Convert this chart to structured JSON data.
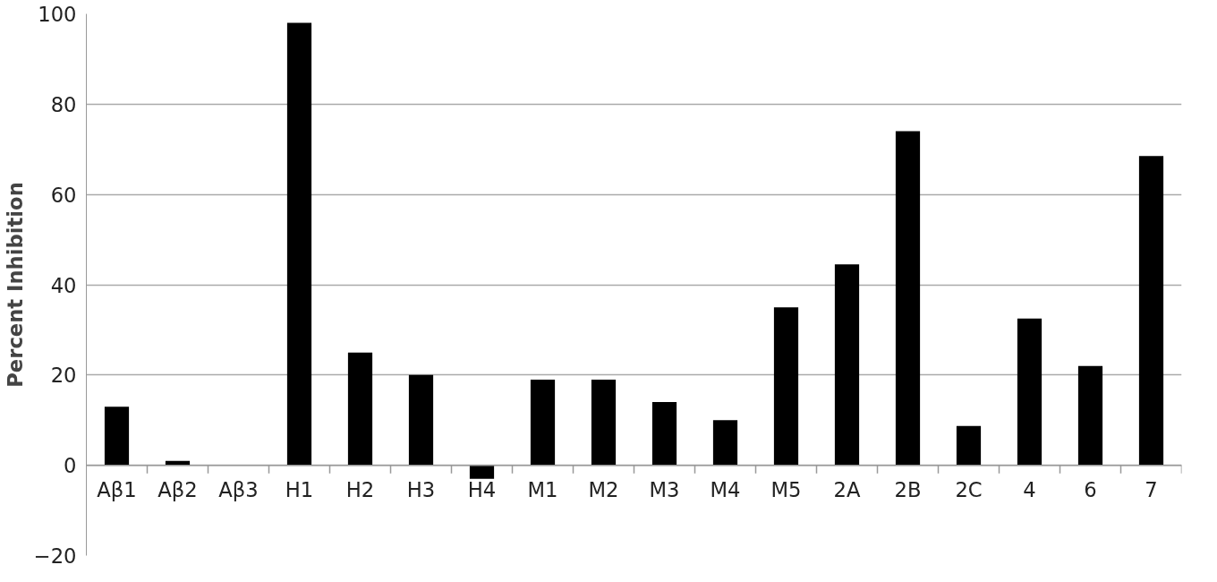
{
  "chart_data": {
    "type": "bar",
    "ylabel": "Percent Inhibition",
    "categories": [
      "Aβ1",
      "Aβ2",
      "Aβ3",
      "H1",
      "H2",
      "H3",
      "H4",
      "M1",
      "M2",
      "M3",
      "M4",
      "M5",
      "2A",
      "2B",
      "2C",
      "4",
      "6",
      "7"
    ],
    "values": [
      13,
      1,
      0,
      98,
      25,
      20,
      -3,
      19,
      19,
      14,
      10,
      35,
      44.5,
      74,
      8.7,
      32.5,
      22,
      68.5
    ],
    "color": "#000000",
    "ylim": [
      -20,
      100
    ],
    "yticks": [
      -20,
      0,
      20,
      40,
      60,
      80,
      100
    ],
    "grid": "y"
  }
}
